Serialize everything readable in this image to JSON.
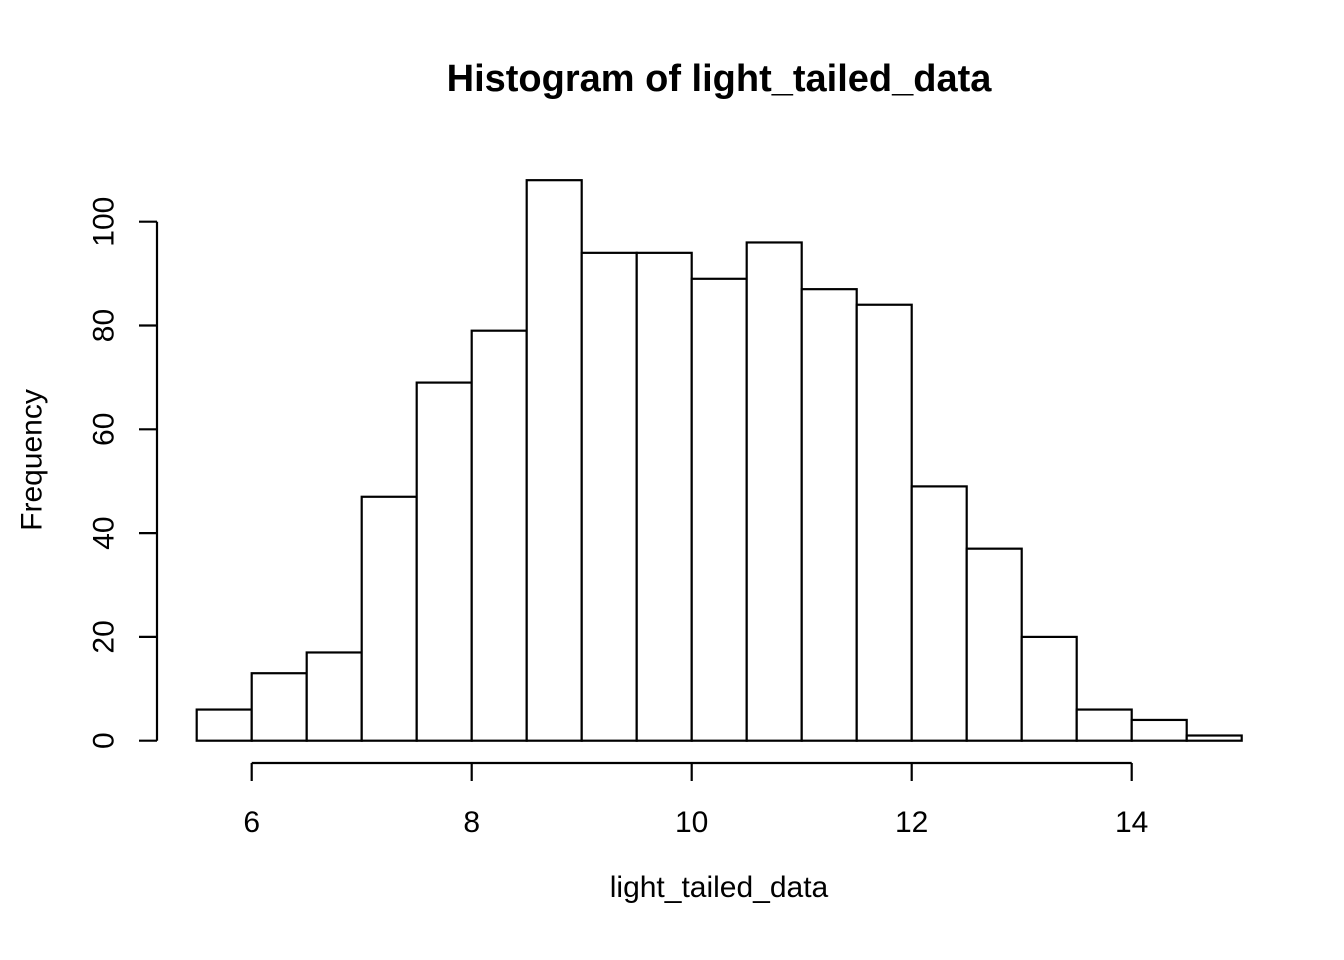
{
  "chart_data": {
    "type": "bar",
    "subtype": "histogram",
    "title": "Histogram of light_tailed_data",
    "xlabel": "light_tailed_data",
    "ylabel": "Frequency",
    "bin_edges": [
      5.5,
      6.0,
      6.5,
      7.0,
      7.5,
      8.0,
      8.5,
      9.0,
      9.5,
      10.0,
      10.5,
      11.0,
      11.5,
      12.0,
      12.5,
      13.0,
      13.5,
      14.0,
      14.5,
      15.0
    ],
    "frequencies": [
      6,
      13,
      17,
      47,
      69,
      79,
      108,
      94,
      94,
      89,
      96,
      87,
      84,
      49,
      37,
      20,
      6,
      4,
      1
    ],
    "x_ticks": [
      6,
      8,
      10,
      12,
      14
    ],
    "y_ticks": [
      0,
      20,
      40,
      60,
      80,
      100
    ],
    "xlim": [
      5.5,
      15.0
    ],
    "ylim": [
      0,
      108
    ],
    "grid": false,
    "bar_fill": "#ffffff",
    "bar_border": "#000000",
    "axis_color": "#000000",
    "text_color": "#000000"
  }
}
